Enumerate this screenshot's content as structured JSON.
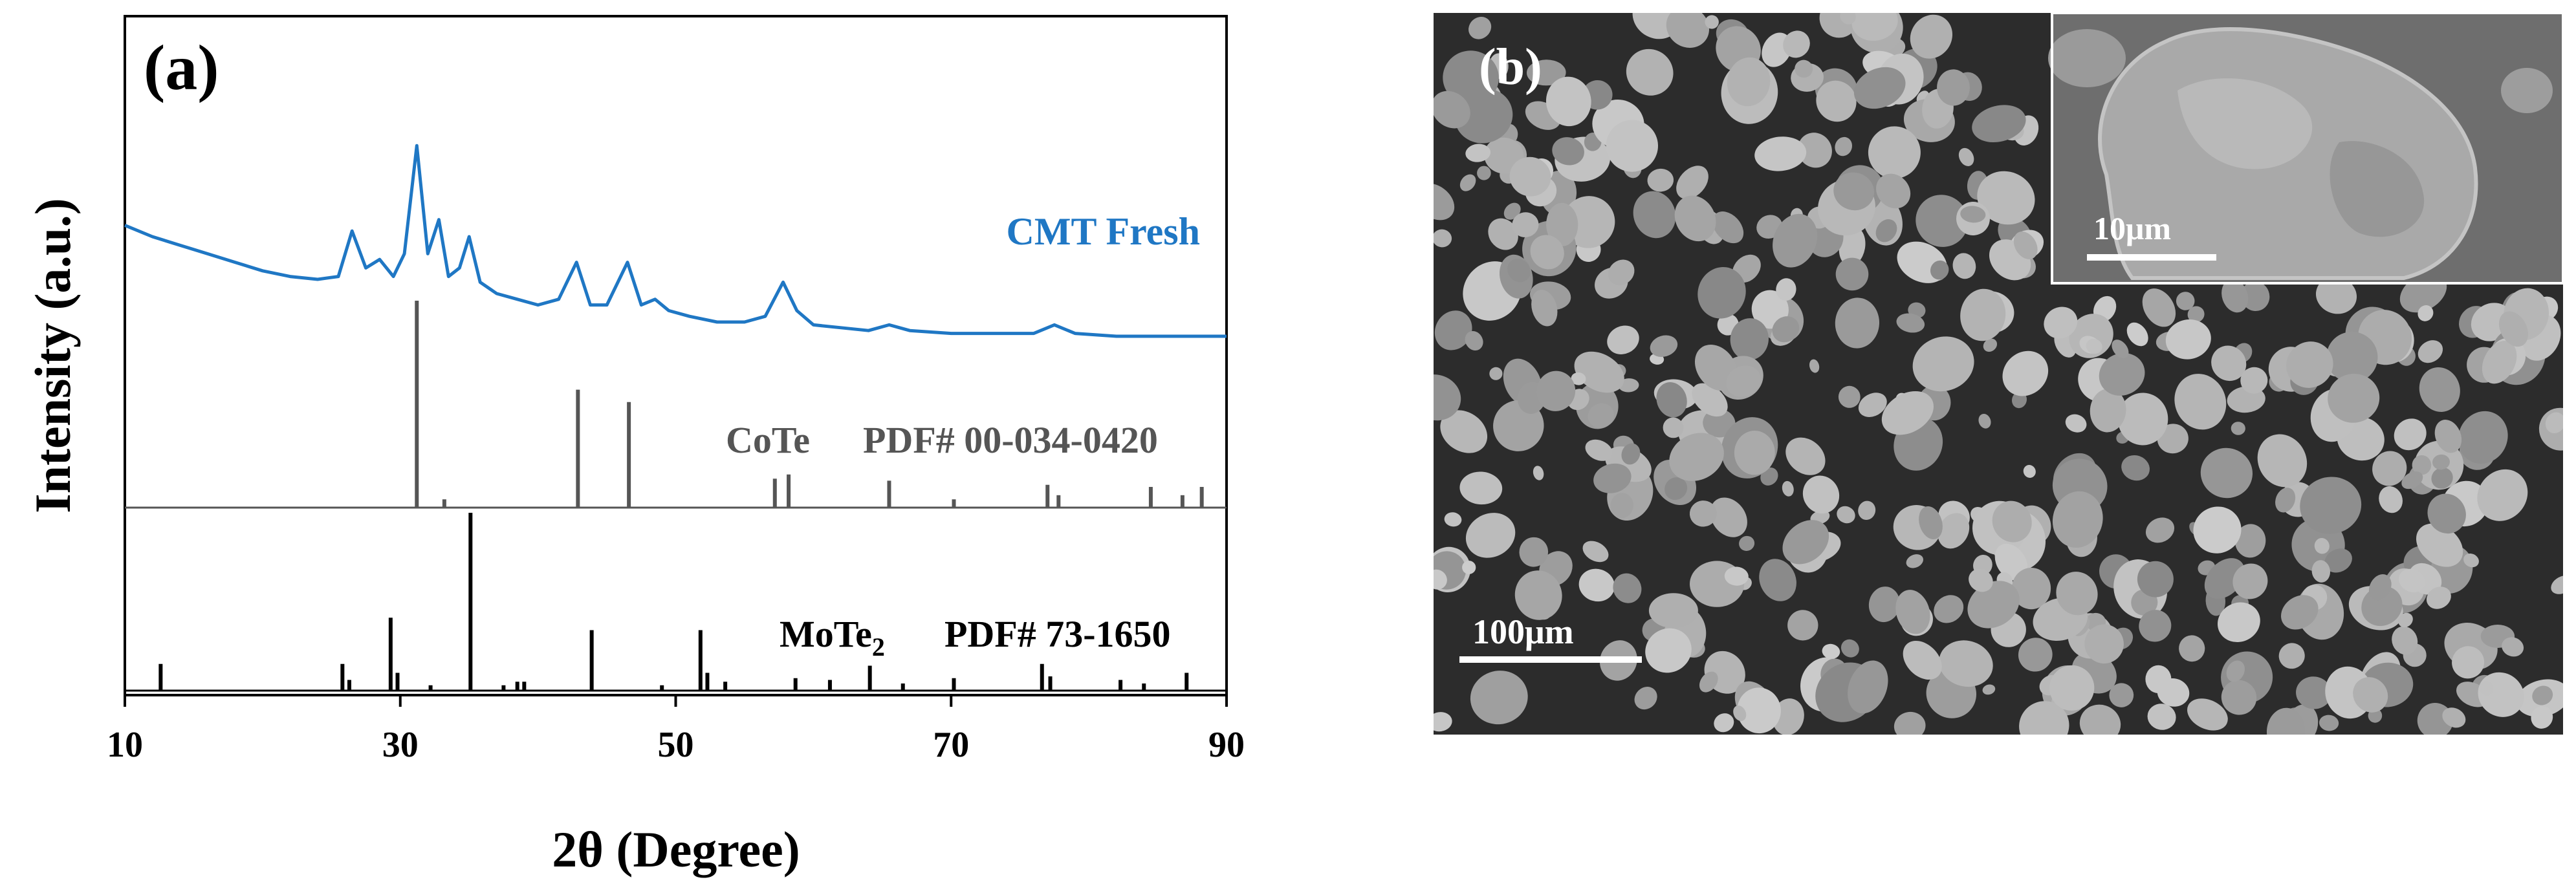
{
  "chart_data": [
    {
      "type": "line",
      "panel_label": "(a)",
      "xlabel": "2θ (Degree)",
      "ylabel": "Intensity (a.u.)",
      "xlim": [
        10,
        90
      ],
      "x_ticks": [
        "10",
        "30",
        "50",
        "70",
        "90"
      ],
      "y_ticks": "none",
      "grid": false,
      "series": [
        {
          "name": "CMT Fresh",
          "color": "#1f77c4",
          "annotation": "CMT Fresh",
          "points": [
            [
              10,
              0.72
            ],
            [
              12,
              0.68
            ],
            [
              14,
              0.65
            ],
            [
              16,
              0.62
            ],
            [
              18,
              0.59
            ],
            [
              20,
              0.56
            ],
            [
              22,
              0.54
            ],
            [
              24,
              0.53
            ],
            [
              25.5,
              0.54
            ],
            [
              26.5,
              0.7
            ],
            [
              27.5,
              0.57
            ],
            [
              28.5,
              0.6
            ],
            [
              29.5,
              0.54
            ],
            [
              30.3,
              0.62
            ],
            [
              31.2,
              1.0
            ],
            [
              32.0,
              0.62
            ],
            [
              32.8,
              0.74
            ],
            [
              33.5,
              0.54
            ],
            [
              34.3,
              0.57
            ],
            [
              35.0,
              0.68
            ],
            [
              35.8,
              0.52
            ],
            [
              37,
              0.48
            ],
            [
              38.5,
              0.46
            ],
            [
              40,
              0.44
            ],
            [
              41.5,
              0.46
            ],
            [
              42.8,
              0.59
            ],
            [
              43.8,
              0.44
            ],
            [
              45,
              0.44
            ],
            [
              46.5,
              0.59
            ],
            [
              47.5,
              0.44
            ],
            [
              48.5,
              0.46
            ],
            [
              49.5,
              0.42
            ],
            [
              51,
              0.4
            ],
            [
              53,
              0.38
            ],
            [
              55,
              0.38
            ],
            [
              56.5,
              0.4
            ],
            [
              57.8,
              0.52
            ],
            [
              58.8,
              0.42
            ],
            [
              60,
              0.37
            ],
            [
              62,
              0.36
            ],
            [
              64,
              0.35
            ],
            [
              65.5,
              0.37
            ],
            [
              67,
              0.35
            ],
            [
              70,
              0.34
            ],
            [
              73,
              0.34
            ],
            [
              76,
              0.34
            ],
            [
              77.5,
              0.37
            ],
            [
              79,
              0.34
            ],
            [
              82,
              0.33
            ],
            [
              85,
              0.33
            ],
            [
              88,
              0.33
            ],
            [
              90,
              0.33
            ]
          ]
        },
        {
          "name": "CoTe",
          "color": "#555555",
          "annotation_phase": "CoTe",
          "annotation_pdf": "PDF# 00-034-0420",
          "peaks": [
            [
              31.2,
              1.0
            ],
            [
              33.2,
              0.04
            ],
            [
              42.9,
              0.57
            ],
            [
              46.6,
              0.51
            ],
            [
              57.2,
              0.14
            ],
            [
              58.2,
              0.16
            ],
            [
              65.5,
              0.13
            ],
            [
              70.2,
              0.04
            ],
            [
              77.0,
              0.11
            ],
            [
              77.8,
              0.06
            ],
            [
              84.5,
              0.1
            ],
            [
              86.8,
              0.06
            ],
            [
              88.2,
              0.1
            ]
          ]
        },
        {
          "name": "MoTe₂",
          "color": "#000000",
          "annotation_phase_base": "MoTe",
          "annotation_phase_sub": "2",
          "annotation_pdf": "PDF# 73-1650",
          "peaks": [
            [
              12.6,
              0.15
            ],
            [
              25.8,
              0.15
            ],
            [
              26.3,
              0.06
            ],
            [
              29.3,
              0.41
            ],
            [
              29.8,
              0.1
            ],
            [
              32.2,
              0.03
            ],
            [
              35.1,
              1.0
            ],
            [
              37.5,
              0.03
            ],
            [
              38.5,
              0.05
            ],
            [
              39.0,
              0.05
            ],
            [
              43.9,
              0.34
            ],
            [
              49.0,
              0.03
            ],
            [
              51.8,
              0.34
            ],
            [
              52.3,
              0.1
            ],
            [
              53.6,
              0.05
            ],
            [
              58.7,
              0.07
            ],
            [
              61.2,
              0.06
            ],
            [
              64.1,
              0.14
            ],
            [
              66.5,
              0.04
            ],
            [
              70.2,
              0.07
            ],
            [
              76.6,
              0.15
            ],
            [
              77.2,
              0.08
            ],
            [
              82.3,
              0.06
            ],
            [
              84.0,
              0.04
            ],
            [
              87.1,
              0.1
            ]
          ]
        }
      ]
    },
    {
      "type": "image",
      "panel_label": "(b)",
      "main_scale_bar": "100μm",
      "inset_scale_bar": "10μm"
    }
  ]
}
